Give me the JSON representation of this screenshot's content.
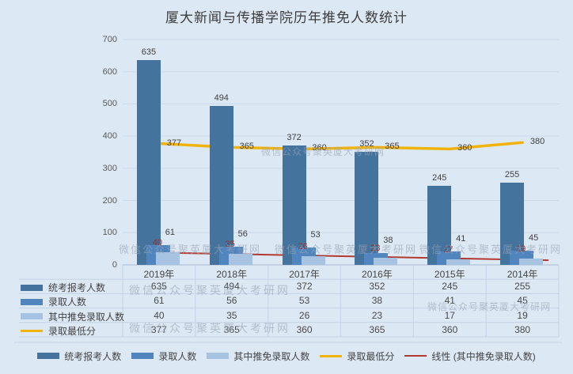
{
  "title": "厦大新闻与传播学院历年推免人数统计",
  "watermark_text": "微信公众号聚英厦大考研网",
  "colors": {
    "background": "#dde8f5",
    "gridline": "#ccd9e9",
    "axis_line": "#a9bacf",
    "table_border": "#c3d2e5",
    "tick_text": "#595959",
    "label_text": "#3f3f3f",
    "recommend_label_red": "#9c2f27"
  },
  "chart_data": {
    "type": "bar",
    "title": "厦大新闻与传播学院历年推免人数统计",
    "categories": [
      "2019年",
      "2018年",
      "2017年",
      "2016年",
      "2015年",
      "2014年"
    ],
    "series": [
      {
        "name": "统考报考人数",
        "type": "bar",
        "color": "#44739e",
        "values": [
          635,
          494,
          372,
          352,
          245,
          255
        ]
      },
      {
        "name": "录取人数",
        "type": "bar",
        "color": "#5185bd",
        "values": [
          61,
          56,
          53,
          38,
          41,
          45
        ]
      },
      {
        "name": "其中推免录取人数",
        "type": "bar",
        "color": "#a6c3e2",
        "values": [
          40,
          35,
          26,
          23,
          17,
          19
        ]
      },
      {
        "name": "录取最低分",
        "type": "line",
        "color": "#f0b40c",
        "values": [
          377,
          365,
          360,
          365,
          360,
          380
        ]
      },
      {
        "name": "线性 (其中推免录取人数)",
        "type": "trend",
        "color": "#b23a30",
        "values": [
          38.2,
          33.6,
          29.0,
          24.4,
          19.7,
          15.1
        ]
      }
    ],
    "ylim": [
      0,
      700
    ],
    "yticks": [
      0,
      100,
      200,
      300,
      400,
      500,
      600,
      700
    ],
    "grid": true,
    "legend_position": "bottom",
    "data_table_shown": true
  }
}
